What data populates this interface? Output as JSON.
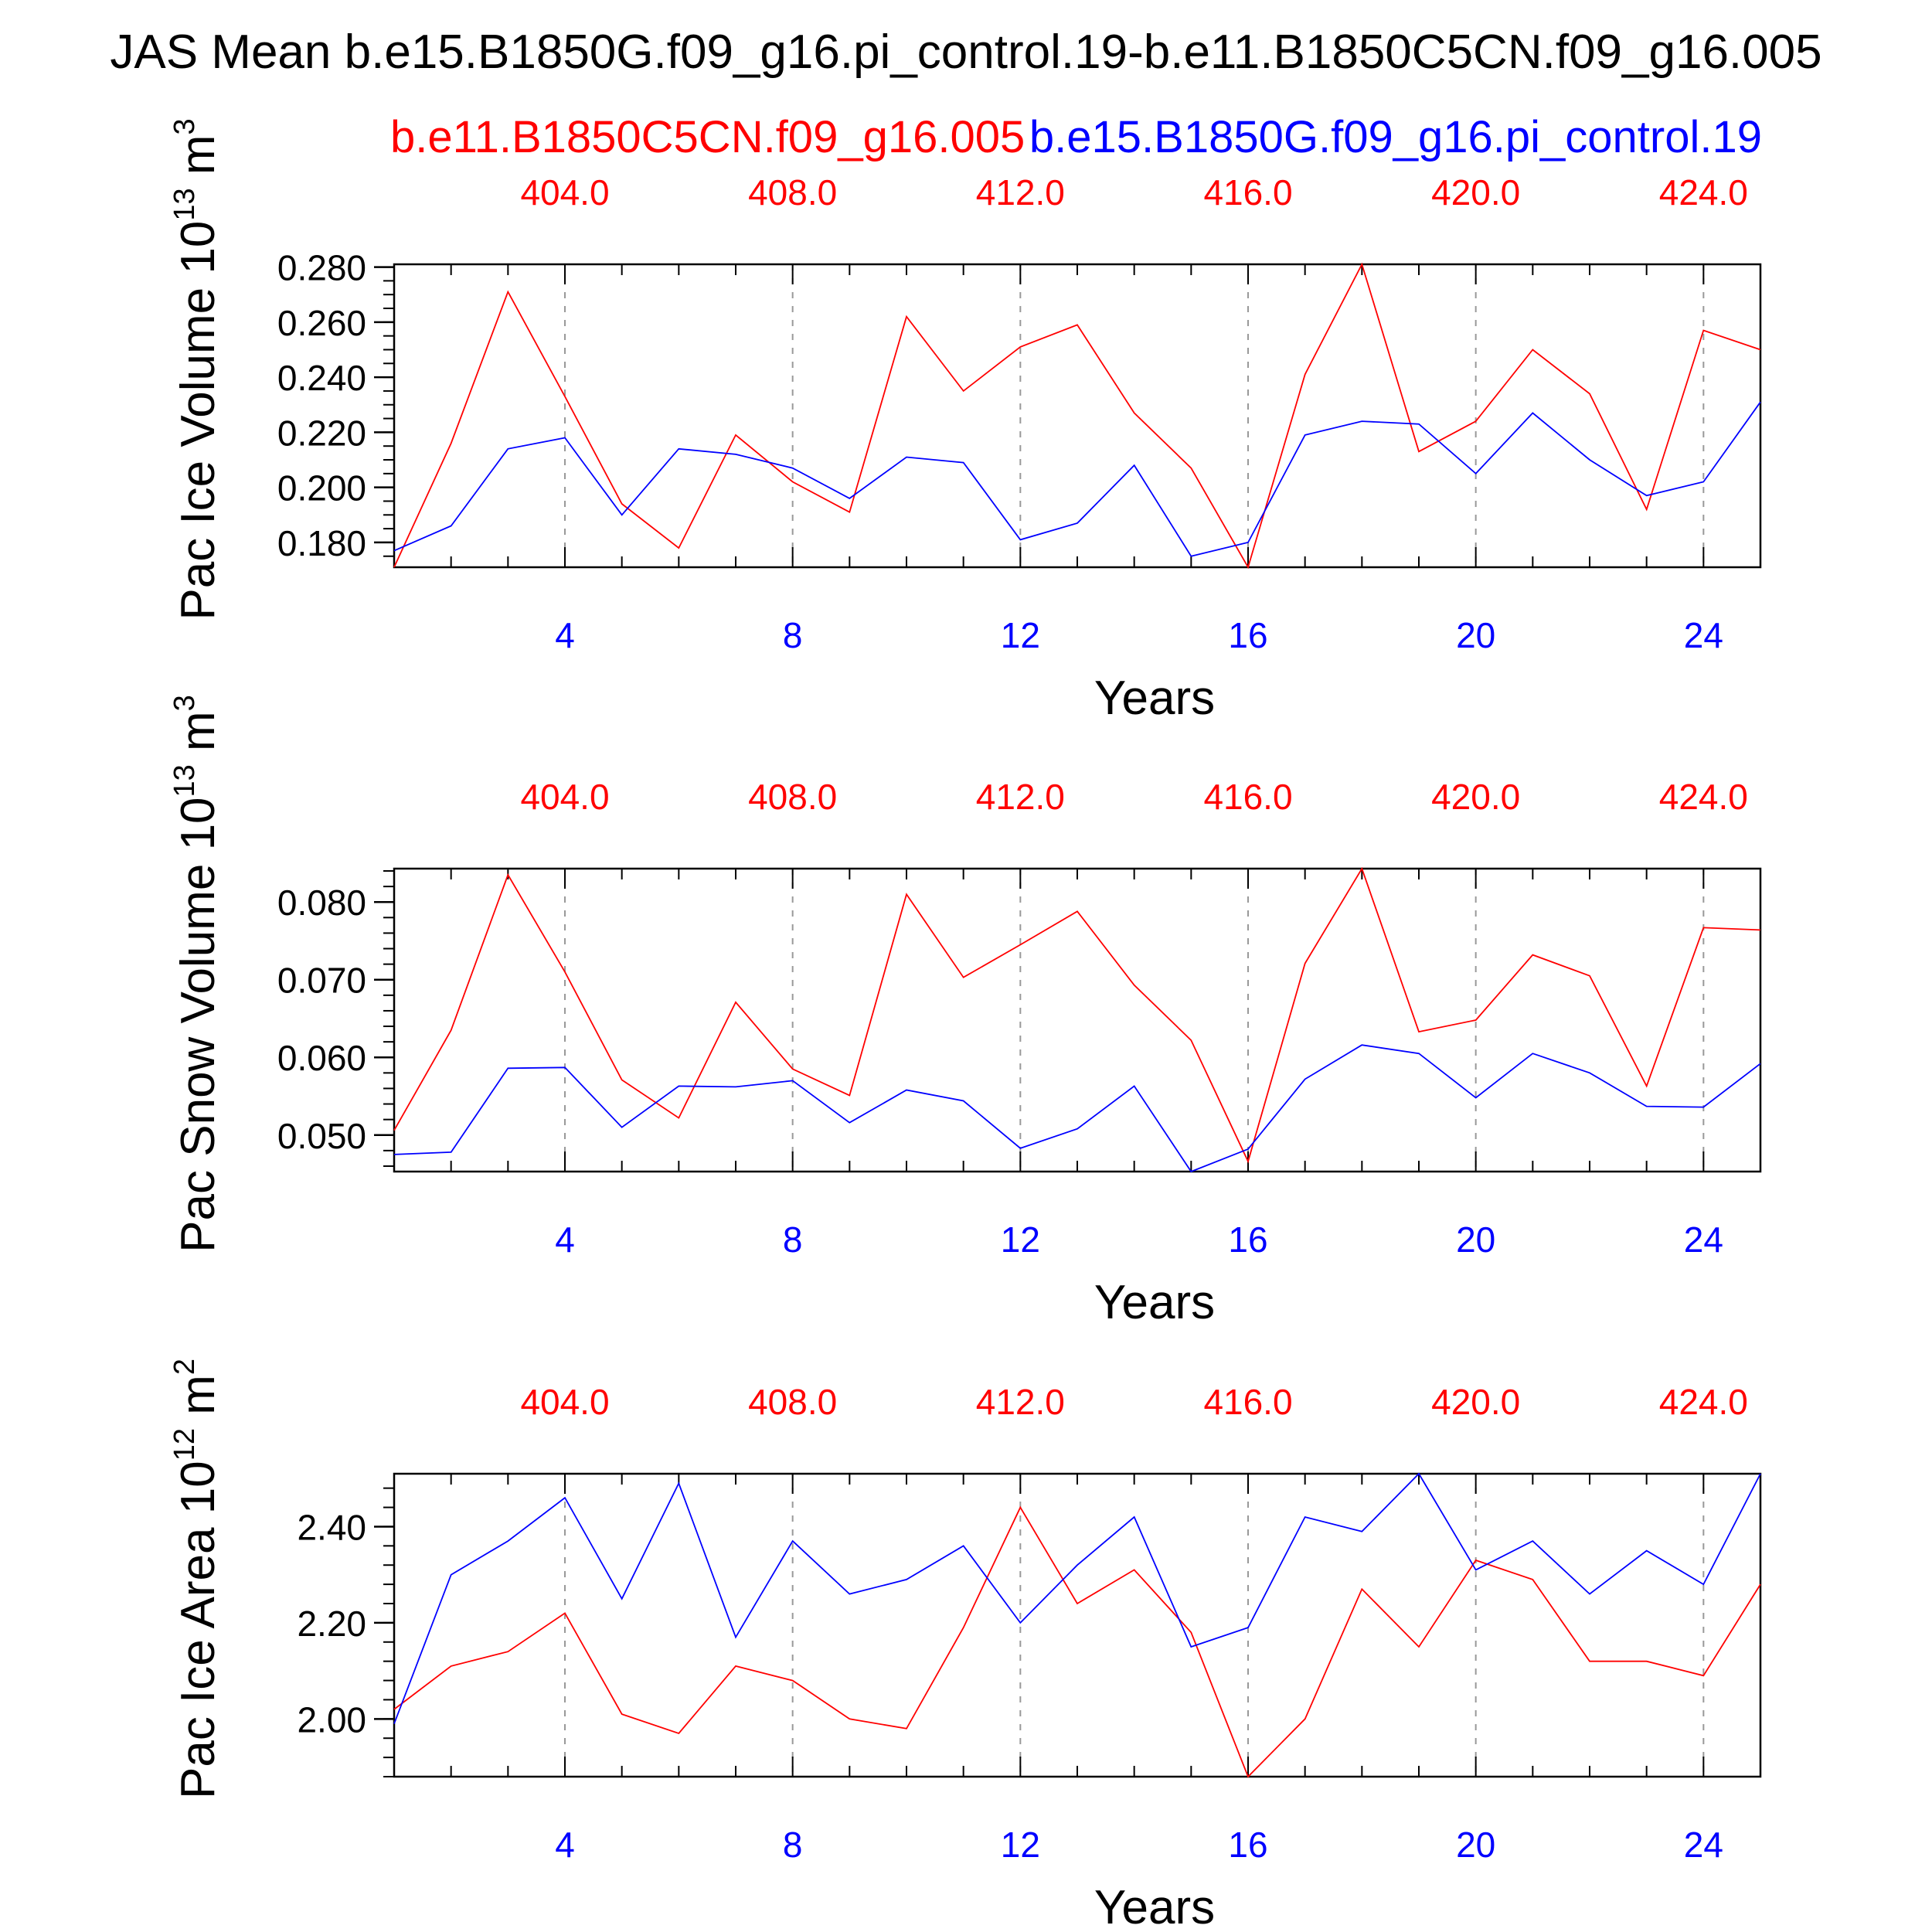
{
  "title": "JAS Mean b.e15.B1850G.f09_g16.pi_control.19-b.e11.B1850C5CN.f09_g16.005",
  "legend": {
    "red_case": "b.e11.B1850C5CN.f09_g16.005",
    "blue_case": "b.e15.B1850G.f09_g16.pi_control.19"
  },
  "colors": {
    "red": "#ff0000",
    "blue": "#0000ff",
    "axis": "#000000",
    "grid": "#999999"
  },
  "chart_data": [
    {
      "type": "line",
      "title": "",
      "ylabel_main": "Pac Ice Volume 10",
      "ylabel_exp": "13",
      "ylabel_unit": " m",
      "ylabel_unit_exp": "3",
      "xlabel": "Years",
      "x": [
        1,
        2,
        3,
        4,
        5,
        6,
        7,
        8,
        9,
        10,
        11,
        12,
        13,
        14,
        15,
        16,
        17,
        18,
        19,
        20,
        21,
        22,
        23,
        24,
        25
      ],
      "xlim": [
        1,
        25
      ],
      "ylim": [
        0.171,
        0.281
      ],
      "yticks": [
        0.18,
        0.2,
        0.22,
        0.24,
        0.26,
        0.28
      ],
      "ytick_labels": [
        "0.180",
        "0.200",
        "0.220",
        "0.240",
        "0.260",
        "0.280"
      ],
      "yminor_step": 0.005,
      "bottom_ticks": [
        4,
        8,
        12,
        16,
        20,
        24
      ],
      "bottom_tick_labels": [
        "4",
        "8",
        "12",
        "16",
        "20",
        "24"
      ],
      "top_ticks": [
        4,
        8,
        12,
        16,
        20,
        24
      ],
      "top_tick_labels": [
        "404.0",
        "408.0",
        "412.0",
        "416.0",
        "420.0",
        "424.0"
      ],
      "series": [
        {
          "name": "b.e11.B1850C5CN.f09_g16.005",
          "color": "red",
          "values": [
            0.171,
            0.216,
            0.271,
            0.233,
            0.194,
            0.178,
            0.219,
            0.202,
            0.191,
            0.262,
            0.235,
            0.251,
            0.259,
            0.227,
            0.207,
            0.171,
            0.241,
            0.281,
            0.213,
            0.224,
            0.25,
            0.234,
            0.192,
            0.257,
            0.25
          ]
        },
        {
          "name": "b.e15.B1850G.f09_g16.pi_control.19",
          "color": "blue",
          "values": [
            0.177,
            0.186,
            0.214,
            0.218,
            0.19,
            0.214,
            0.212,
            0.207,
            0.196,
            0.211,
            0.209,
            0.181,
            0.187,
            0.208,
            0.175,
            0.18,
            0.219,
            0.224,
            0.223,
            0.205,
            0.227,
            0.21,
            0.197,
            0.202,
            0.231
          ]
        }
      ]
    },
    {
      "type": "line",
      "title": "",
      "ylabel_main": "Pac Snow Volume 10",
      "ylabel_exp": "13",
      "ylabel_unit": " m",
      "ylabel_unit_exp": "3",
      "xlabel": "Years",
      "x": [
        1,
        2,
        3,
        4,
        5,
        6,
        7,
        8,
        9,
        10,
        11,
        12,
        13,
        14,
        15,
        16,
        17,
        18,
        19,
        20,
        21,
        22,
        23,
        24,
        25
      ],
      "xlim": [
        1,
        25
      ],
      "ylim": [
        0.0453,
        0.0843
      ],
      "yticks": [
        0.05,
        0.06,
        0.07,
        0.08
      ],
      "ytick_labels": [
        "0.050",
        "0.060",
        "0.070",
        "0.080"
      ],
      "yminor_step": 0.002,
      "bottom_ticks": [
        4,
        8,
        12,
        16,
        20,
        24
      ],
      "bottom_tick_labels": [
        "4",
        "8",
        "12",
        "16",
        "20",
        "24"
      ],
      "top_ticks": [
        4,
        8,
        12,
        16,
        20,
        24
      ],
      "top_tick_labels": [
        "404.0",
        "408.0",
        "412.0",
        "416.0",
        "420.0",
        "424.0"
      ],
      "series": [
        {
          "name": "b.e11.B1850C5CN.f09_g16.005",
          "color": "red",
          "values": [
            0.0506,
            0.0635,
            0.0835,
            0.071,
            0.0571,
            0.0522,
            0.0671,
            0.0585,
            0.0551,
            0.081,
            0.0703,
            0.0745,
            0.0788,
            0.0693,
            0.0622,
            0.0466,
            0.0721,
            0.0843,
            0.0633,
            0.0648,
            0.0732,
            0.0705,
            0.0563,
            0.0767,
            0.0764
          ]
        },
        {
          "name": "b.e15.B1850G.f09_g16.pi_control.19",
          "color": "blue",
          "values": [
            0.0475,
            0.0478,
            0.0586,
            0.0587,
            0.051,
            0.0563,
            0.0562,
            0.057,
            0.0516,
            0.0558,
            0.0544,
            0.0483,
            0.0508,
            0.0563,
            0.0453,
            0.0482,
            0.0572,
            0.0616,
            0.0605,
            0.0548,
            0.0605,
            0.058,
            0.0537,
            0.0536,
            0.0592
          ]
        }
      ]
    },
    {
      "type": "line",
      "title": "",
      "ylabel_main": "Pac Ice Area 10",
      "ylabel_exp": "12",
      "ylabel_unit": " m",
      "ylabel_unit_exp": "2",
      "xlabel": "Years",
      "x": [
        1,
        2,
        3,
        4,
        5,
        6,
        7,
        8,
        9,
        10,
        11,
        12,
        13,
        14,
        15,
        16,
        17,
        18,
        19,
        20,
        21,
        22,
        23,
        24,
        25
      ],
      "xlim": [
        1,
        25
      ],
      "ylim": [
        1.88,
        2.51
      ],
      "yticks": [
        2.0,
        2.2,
        2.4
      ],
      "ytick_labels": [
        "2.00",
        "2.20",
        "2.40"
      ],
      "yminor_step": 0.04,
      "bottom_ticks": [
        4,
        8,
        12,
        16,
        20,
        24
      ],
      "bottom_tick_labels": [
        "4",
        "8",
        "12",
        "16",
        "20",
        "24"
      ],
      "top_ticks": [
        4,
        8,
        12,
        16,
        20,
        24
      ],
      "top_tick_labels": [
        "404.0",
        "408.0",
        "412.0",
        "416.0",
        "420.0",
        "424.0"
      ],
      "series": [
        {
          "name": "b.e11.B1850C5CN.f09_g16.005",
          "color": "red",
          "values": [
            2.02,
            2.11,
            2.14,
            2.22,
            2.01,
            1.97,
            2.11,
            2.08,
            2.0,
            1.98,
            2.19,
            2.44,
            2.24,
            2.31,
            2.18,
            1.88,
            2.0,
            2.27,
            2.15,
            2.33,
            2.29,
            2.12,
            2.12,
            2.09,
            2.28
          ]
        },
        {
          "name": "b.e15.B1850G.f09_g16.pi_control.19",
          "color": "blue",
          "values": [
            1.99,
            2.3,
            2.37,
            2.46,
            2.25,
            2.49,
            2.17,
            2.37,
            2.26,
            2.29,
            2.36,
            2.2,
            2.32,
            2.42,
            2.15,
            2.19,
            2.42,
            2.39,
            2.51,
            2.31,
            2.37,
            2.26,
            2.35,
            2.28,
            2.51
          ]
        }
      ]
    }
  ]
}
